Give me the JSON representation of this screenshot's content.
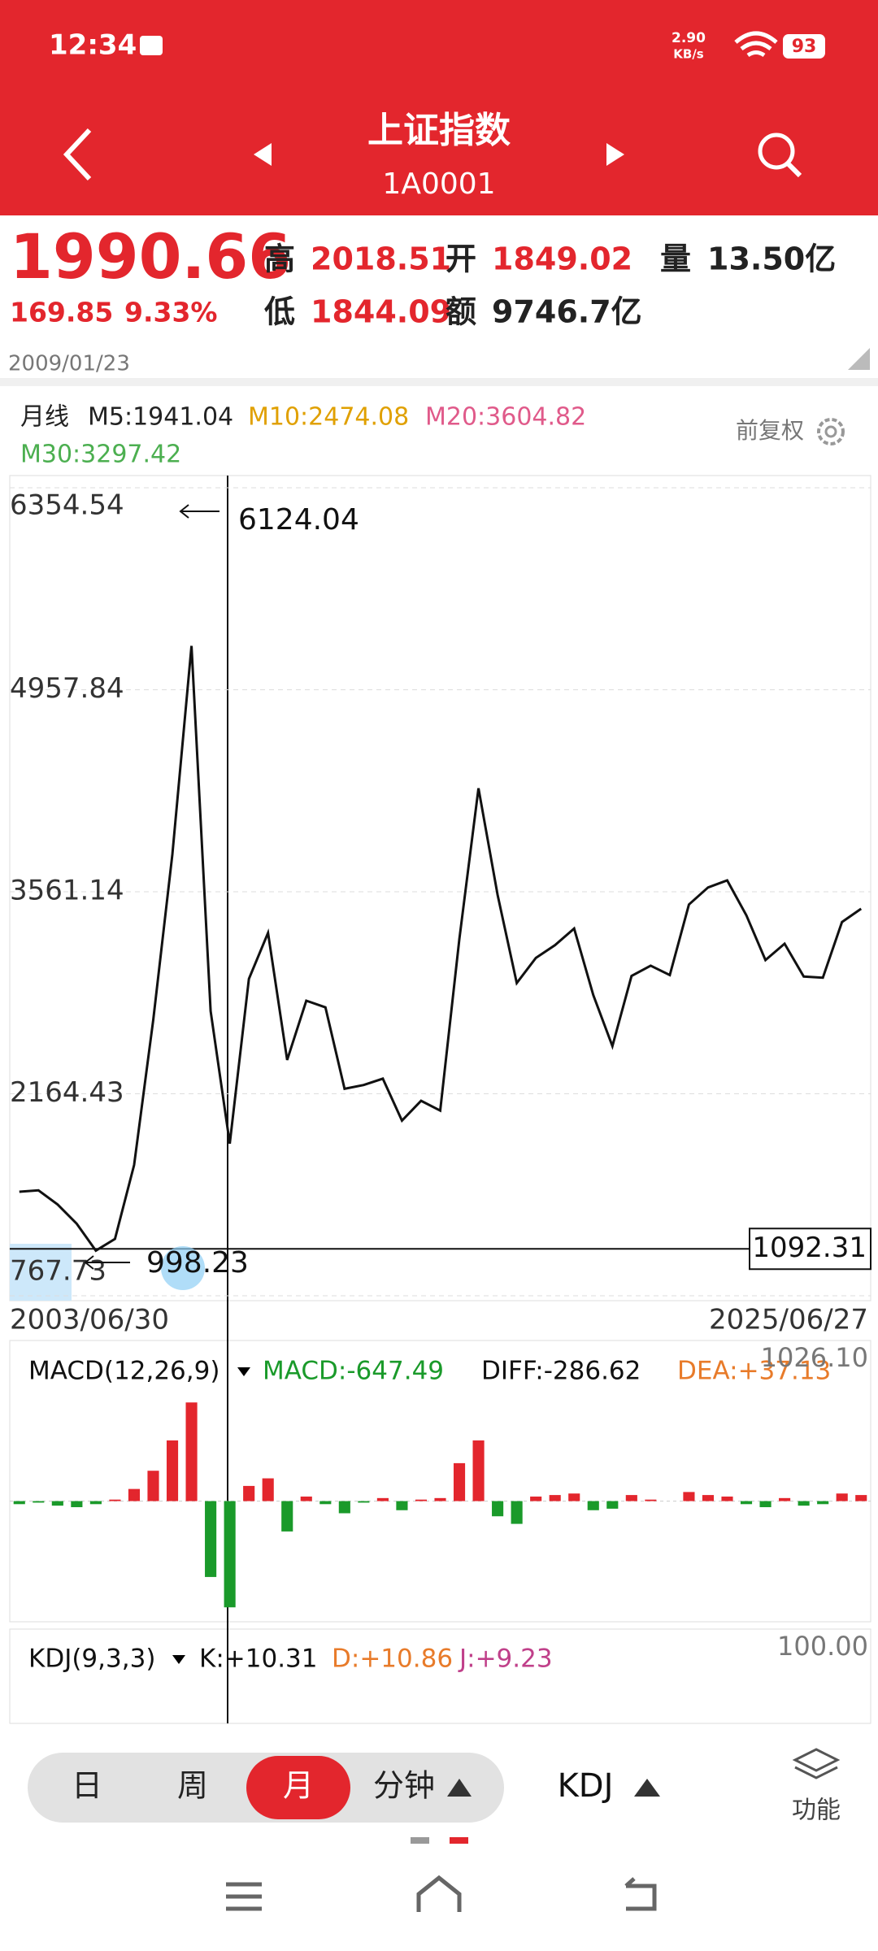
{
  "status_bar": {
    "time": "12:34",
    "net_speed": "2.90",
    "net_unit": "KB/s",
    "battery": "93"
  },
  "header": {
    "title": "上证指数",
    "code": "1A0001"
  },
  "quote": {
    "price": "1990.66",
    "change": "169.85",
    "change_pct": "9.33%",
    "high_label": "高",
    "high": "2018.51",
    "open_label": "开",
    "open": "1849.02",
    "volume_label": "量",
    "volume": "13.50亿",
    "low_label": "低",
    "low": "1844.09",
    "amount_label": "额",
    "amount": "9746.7亿",
    "date": "2009/01/23"
  },
  "ma_legend": {
    "period": "月线",
    "m5": "M5:1941.04",
    "m10": "M10:2474.08",
    "m20": "M20:3604.82",
    "m30": "M30:3297.42",
    "adjust": "前复权"
  },
  "chart_data": [
    {
      "type": "line",
      "color": "#111111",
      "ylim": [
        767.73,
        6354.54
      ],
      "yticks": [
        6354.54,
        4957.84,
        3561.14,
        2164.43,
        767.73
      ],
      "grid": true,
      "x_start_label": "2003/06/30",
      "x_end_label": "2025/06/27",
      "crosshair_value": 1092.31,
      "high_marker": 6124.04,
      "low_marker": 998.23,
      "values": [
        1487,
        1497,
        1399,
        1266,
        1080,
        1161,
        1672,
        2675,
        3820,
        5261,
        2736,
        1820,
        2959,
        3277,
        2398,
        2808,
        2762,
        2199,
        2225,
        2269,
        1979,
        2116,
        2048,
        3234,
        4277,
        3539,
        2930,
        3104,
        3192,
        3307,
        2847,
        2494,
        2979,
        3050,
        2985,
        3473,
        3591,
        3640,
        3399,
        3089,
        3202,
        2975,
        2967,
        3352,
        3444
      ]
    },
    {
      "type": "bar",
      "title": "MACD(12,26,9)",
      "macd": "MACD:-647.49",
      "diff": "DIFF:-286.62",
      "dea": "DEA:+37.13",
      "up_color": "#e3262d",
      "down_color": "#1a9a2a",
      "ylim": [
        -779,
        1026.1
      ],
      "yticks": [
        {
          "value": 1026.1,
          "label": "1026.10"
        }
      ],
      "values": [
        -20,
        -10,
        -30,
        -40,
        -20,
        10,
        80,
        200,
        400,
        650,
        -500,
        -700,
        100,
        150,
        -200,
        30,
        -20,
        -80,
        -10,
        20,
        -60,
        10,
        20,
        250,
        400,
        -100,
        -150,
        30,
        40,
        50,
        -60,
        -50,
        40,
        10,
        0,
        60,
        40,
        30,
        -20,
        -40,
        20,
        -30,
        -20,
        50,
        40
      ]
    },
    {
      "type": "kdj",
      "title": "KDJ(9,3,3)",
      "k": "K:+10.31",
      "d": "D:+10.86",
      "j": "J:+9.23",
      "yticks": [
        {
          "value": 100,
          "label": "100.00"
        }
      ]
    }
  ],
  "toolbar": {
    "periods": [
      "日",
      "周",
      "月",
      "分钟"
    ],
    "selected": 2,
    "indicator": "KDJ",
    "more": "功能"
  }
}
